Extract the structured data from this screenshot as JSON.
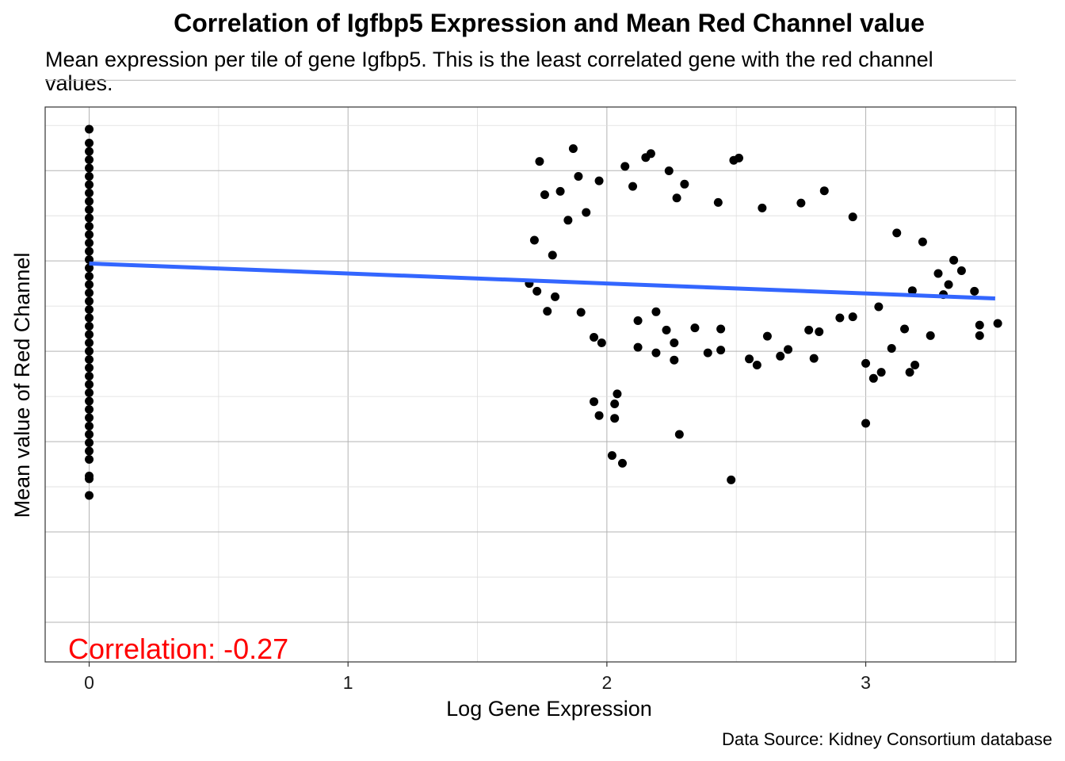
{
  "chart_data": {
    "type": "scatter",
    "title": "Correlation of Igfbp5 Expression and Mean Red Channel value",
    "subtitle_lines": [
      "Mean expression per tile of gene Igfbp5. This is the least correlated gene with the red channel",
      "values."
    ],
    "xlabel": "Log Gene Expression",
    "ylabel": "Mean value of Red Channel",
    "caption": "Data Source: Kidney Consortium database",
    "annotation": {
      "text": "Correlation: -0.27",
      "color": "#ff0000",
      "position": "bottom-left"
    },
    "xlim": [
      -0.17,
      3.58
    ],
    "ylim": [
      0.0,
      1.0
    ],
    "y_ticks_labeled": false,
    "x_ticks": [
      {
        "value": 0,
        "label": "0"
      },
      {
        "value": 1,
        "label": "1"
      },
      {
        "value": 2,
        "label": "2"
      },
      {
        "value": 3,
        "label": "3"
      }
    ],
    "grid": true,
    "point_color": "#000000",
    "trend_line": {
      "color": "#3366ff",
      "x": [
        0,
        3.5
      ],
      "y": [
        0.718,
        0.655
      ]
    },
    "series": [
      {
        "points": [
          [
            0,
            0.96
          ],
          [
            0,
            0.935
          ],
          [
            0,
            0.92
          ],
          [
            0,
            0.905
          ],
          [
            0,
            0.89
          ],
          [
            0,
            0.875
          ],
          [
            0,
            0.86
          ],
          [
            0,
            0.845
          ],
          [
            0,
            0.83
          ],
          [
            0,
            0.815
          ],
          [
            0,
            0.8
          ],
          [
            0,
            0.785
          ],
          [
            0,
            0.77
          ],
          [
            0,
            0.755
          ],
          [
            0,
            0.74
          ],
          [
            0,
            0.725
          ],
          [
            0,
            0.71
          ],
          [
            0,
            0.695
          ],
          [
            0,
            0.68
          ],
          [
            0,
            0.665
          ],
          [
            0,
            0.65
          ],
          [
            0,
            0.635
          ],
          [
            0,
            0.62
          ],
          [
            0,
            0.605
          ],
          [
            0,
            0.59
          ],
          [
            0,
            0.575
          ],
          [
            0,
            0.56
          ],
          [
            0,
            0.545
          ],
          [
            0,
            0.53
          ],
          [
            0,
            0.515
          ],
          [
            0,
            0.5
          ],
          [
            0,
            0.485
          ],
          [
            0,
            0.47
          ],
          [
            0,
            0.455
          ],
          [
            0,
            0.44
          ],
          [
            0,
            0.425
          ],
          [
            0,
            0.41
          ],
          [
            0,
            0.395
          ],
          [
            0,
            0.38
          ],
          [
            0,
            0.365
          ],
          [
            0,
            0.335
          ],
          [
            0,
            0.3
          ],
          [
            0,
            0.33
          ],
          [
            1.87,
            0.925
          ],
          [
            1.74,
            0.902
          ],
          [
            2.17,
            0.916
          ],
          [
            2.15,
            0.909
          ],
          [
            2.49,
            0.904
          ],
          [
            2.51,
            0.908
          ],
          [
            2.07,
            0.893
          ],
          [
            2.24,
            0.885
          ],
          [
            1.89,
            0.875
          ],
          [
            1.97,
            0.867
          ],
          [
            2.1,
            0.857
          ],
          [
            2.3,
            0.861
          ],
          [
            2.84,
            0.849
          ],
          [
            3.18,
            0.669
          ],
          [
            3.3,
            0.662
          ],
          [
            3.32,
            0.68
          ],
          [
            3.37,
            0.705
          ],
          [
            3.42,
            0.668
          ],
          [
            3.44,
            0.588
          ],
          [
            3.51,
            0.61
          ],
          [
            3.44,
            0.607
          ],
          [
            3.19,
            0.535
          ],
          [
            3.17,
            0.522
          ],
          [
            3.0,
            0.538
          ],
          [
            3.06,
            0.522
          ],
          [
            3.03,
            0.511
          ],
          [
            3.0,
            0.43
          ],
          [
            2.8,
            0.547
          ],
          [
            2.67,
            0.551
          ],
          [
            2.55,
            0.546
          ],
          [
            2.58,
            0.535
          ],
          [
            2.44,
            0.562
          ],
          [
            2.39,
            0.557
          ],
          [
            2.04,
            0.483
          ],
          [
            2.03,
            0.465
          ],
          [
            2.03,
            0.439
          ],
          [
            1.95,
            0.469
          ],
          [
            1.97,
            0.444
          ],
          [
            2.02,
            0.372
          ],
          [
            2.06,
            0.358
          ],
          [
            2.28,
            0.41
          ],
          [
            2.48,
            0.328
          ],
          [
            2.19,
            0.631
          ],
          [
            2.23,
            0.598
          ],
          [
            2.19,
            0.557
          ],
          [
            2.26,
            0.544
          ],
          [
            2.12,
            0.615
          ],
          [
            1.9,
            0.63
          ],
          [
            1.8,
            0.658
          ],
          [
            1.73,
            0.668
          ],
          [
            1.77,
            0.632
          ],
          [
            1.7,
            0.682
          ],
          [
            1.72,
            0.76
          ],
          [
            1.79,
            0.733
          ],
          [
            1.85,
            0.796
          ],
          [
            1.92,
            0.81
          ],
          [
            1.76,
            0.842
          ],
          [
            1.82,
            0.848
          ],
          [
            2.27,
            0.836
          ],
          [
            2.43,
            0.828
          ],
          [
            2.6,
            0.818
          ],
          [
            2.75,
            0.827
          ],
          [
            2.95,
            0.802
          ],
          [
            3.12,
            0.773
          ],
          [
            3.22,
            0.757
          ],
          [
            3.34,
            0.724
          ],
          [
            3.28,
            0.7
          ],
          [
            2.9,
            0.62
          ],
          [
            2.78,
            0.598
          ],
          [
            2.7,
            0.563
          ],
          [
            2.62,
            0.587
          ],
          [
            2.34,
            0.602
          ],
          [
            1.95,
            0.585
          ],
          [
            1.98,
            0.575
          ],
          [
            2.26,
            0.575
          ],
          [
            2.12,
            0.567
          ],
          [
            2.44,
            0.6
          ],
          [
            3.1,
            0.565
          ],
          [
            3.15,
            0.6
          ],
          [
            3.25,
            0.588
          ],
          [
            3.05,
            0.64
          ],
          [
            2.95,
            0.622
          ],
          [
            2.82,
            0.595
          ]
        ]
      }
    ]
  }
}
